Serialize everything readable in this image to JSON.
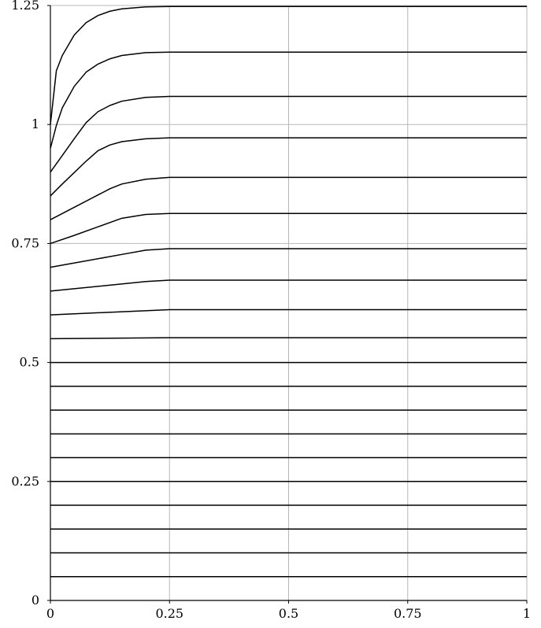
{
  "chart_data": {
    "type": "line",
    "title": "",
    "xlabel": "",
    "ylabel": "",
    "xlim": [
      0,
      1
    ],
    "ylim": [
      0,
      1.25
    ],
    "grid": true,
    "x_ticks": [
      0,
      0.25,
      0.5,
      0.75,
      1
    ],
    "y_ticks": [
      0,
      0.25,
      0.5,
      0.75,
      1,
      1.25
    ],
    "x_tick_labels": [
      "0",
      "0.25",
      "0.5",
      "0.75",
      "1"
    ],
    "y_tick_labels": [
      "0",
      "0.25",
      "0.5",
      "0.75",
      "1",
      "1.25"
    ],
    "line_color": "#000000",
    "grid_color": "#b8b8b8",
    "series": [
      {
        "x": [
          0,
          1
        ],
        "y": [
          0.05,
          0.05
        ]
      },
      {
        "x": [
          0,
          1
        ],
        "y": [
          0.1,
          0.1
        ]
      },
      {
        "x": [
          0,
          1
        ],
        "y": [
          0.15,
          0.15
        ]
      },
      {
        "x": [
          0,
          1
        ],
        "y": [
          0.2,
          0.2
        ]
      },
      {
        "x": [
          0,
          1
        ],
        "y": [
          0.25,
          0.25
        ]
      },
      {
        "x": [
          0,
          1
        ],
        "y": [
          0.3,
          0.3
        ]
      },
      {
        "x": [
          0,
          1
        ],
        "y": [
          0.35,
          0.35
        ]
      },
      {
        "x": [
          0,
          1
        ],
        "y": [
          0.4,
          0.4
        ]
      },
      {
        "x": [
          0,
          1
        ],
        "y": [
          0.45,
          0.45
        ]
      },
      {
        "x": [
          0,
          1
        ],
        "y": [
          0.5,
          0.5
        ]
      },
      {
        "x": [
          0,
          0.25,
          1
        ],
        "y": [
          0.55,
          0.552,
          0.552
        ]
      },
      {
        "x": [
          0,
          0.25,
          1
        ],
        "y": [
          0.6,
          0.611,
          0.611
        ]
      },
      {
        "x": [
          0,
          0.2,
          0.25,
          1
        ],
        "y": [
          0.65,
          0.67,
          0.673,
          0.673
        ]
      },
      {
        "x": [
          0,
          0.15,
          0.2,
          0.25,
          1
        ],
        "y": [
          0.7,
          0.727,
          0.736,
          0.739,
          0.739
        ]
      },
      {
        "x": [
          0,
          0.05,
          0.1,
          0.15,
          0.2,
          0.25,
          1
        ],
        "y": [
          0.75,
          0.767,
          0.785,
          0.803,
          0.811,
          0.813,
          0.813
        ]
      },
      {
        "x": [
          0,
          0.05,
          0.1,
          0.125,
          0.15,
          0.2,
          0.25,
          1
        ],
        "y": [
          0.8,
          0.826,
          0.852,
          0.865,
          0.875,
          0.885,
          0.889,
          0.889
        ]
      },
      {
        "x": [
          0,
          0.025,
          0.05,
          0.075,
          0.1,
          0.125,
          0.15,
          0.2,
          0.25,
          1
        ],
        "y": [
          0.85,
          0.875,
          0.899,
          0.923,
          0.945,
          0.957,
          0.964,
          0.97,
          0.972,
          0.972
        ]
      },
      {
        "x": [
          0,
          0.025,
          0.05,
          0.075,
          0.1,
          0.125,
          0.15,
          0.2,
          0.25,
          1
        ],
        "y": [
          0.9,
          0.935,
          0.97,
          1.004,
          1.027,
          1.04,
          1.049,
          1.057,
          1.059,
          1.059
        ]
      },
      {
        "x": [
          0,
          0.0125,
          0.025,
          0.05,
          0.075,
          0.1,
          0.125,
          0.15,
          0.2,
          0.25,
          1
        ],
        "y": [
          0.95,
          0.998,
          1.035,
          1.08,
          1.11,
          1.127,
          1.138,
          1.145,
          1.151,
          1.152,
          1.152
        ]
      },
      {
        "x": [
          0,
          0.0125,
          0.025,
          0.05,
          0.075,
          0.1,
          0.125,
          0.15,
          0.2,
          0.25,
          1
        ],
        "y": [
          1.0,
          1.113,
          1.145,
          1.188,
          1.214,
          1.229,
          1.238,
          1.243,
          1.247,
          1.248,
          1.248
        ]
      }
    ]
  }
}
